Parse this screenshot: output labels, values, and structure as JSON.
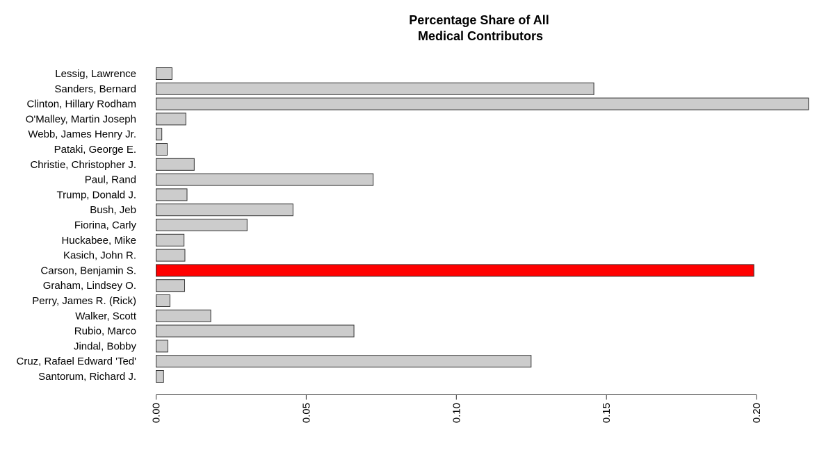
{
  "chart_data": {
    "type": "bar",
    "orientation": "horizontal",
    "title": [
      "Percentage Share of All",
      "Medical Contributors"
    ],
    "xlabel": "",
    "ylabel": "",
    "xlim": [
      0,
      0.218
    ],
    "ticks": [
      "0.00",
      "0.05",
      "0.10",
      "0.15",
      "0.20"
    ],
    "tick_values": [
      0,
      0.05,
      0.1,
      0.15,
      0.2
    ],
    "grid": false,
    "legend": "none",
    "default_color": "#cccccc",
    "highlight_color": "#ff0000",
    "categories": [
      "Lessig, Lawrence",
      "Sanders, Bernard",
      "Clinton, Hillary Rodham",
      "O'Malley, Martin Joseph",
      "Webb, James Henry Jr.",
      "Pataki, George E.",
      "Christie, Christopher J.",
      "Paul, Rand",
      "Trump, Donald J.",
      "Bush, Jeb",
      "Fiorina, Carly",
      "Huckabee, Mike",
      "Kasich, John R.",
      "Carson, Benjamin S.",
      "Graham, Lindsey O.",
      "Perry, James R. (Rick)",
      "Walker, Scott",
      "Rubio, Marco",
      "Jindal, Bobby",
      "Cruz, Rafael Edward 'Ted'",
      "Santorum, Richard J."
    ],
    "values": [
      0.0053,
      0.1458,
      0.2173,
      0.0099,
      0.0019,
      0.0037,
      0.0127,
      0.0723,
      0.0103,
      0.0456,
      0.0303,
      0.0093,
      0.0096,
      0.1991,
      0.0095,
      0.0046,
      0.0182,
      0.0659,
      0.0039,
      0.1249,
      0.0025
    ],
    "highlighted": [
      "Carson, Benjamin S."
    ]
  }
}
